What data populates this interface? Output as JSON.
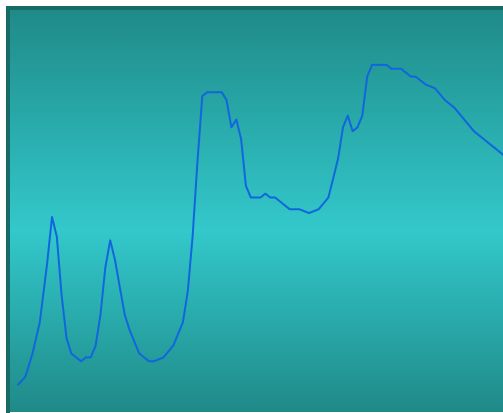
{
  "colors": {
    "background_edge": "#1f8a88",
    "background_center": "#33c8cb",
    "line": "#1166dd",
    "border": "#176a66"
  },
  "chart_data": {
    "type": "line",
    "title": "",
    "xlabel": "",
    "ylabel": "",
    "xlim": [
      0,
      100
    ],
    "ylim": [
      0,
      100
    ],
    "grid": false,
    "series": [
      {
        "x": [
          0,
          1.5,
          3,
          4.5,
          6,
          7,
          8,
          9,
          10,
          11,
          12,
          13,
          14,
          15,
          16,
          17,
          18,
          19,
          20,
          21,
          22,
          23,
          24,
          25,
          26,
          27,
          28,
          30,
          32,
          34,
          35,
          36,
          37,
          38,
          39,
          40,
          41,
          42,
          43,
          44,
          45,
          46,
          47,
          48,
          49,
          50,
          51,
          52,
          53,
          54,
          55,
          56,
          57,
          58,
          60,
          62,
          64,
          65,
          66,
          67,
          68,
          69,
          70,
          71,
          72,
          73,
          74,
          75,
          76,
          77,
          78,
          79,
          80,
          81,
          82,
          83,
          84,
          86,
          88,
          90,
          92,
          94,
          96,
          98,
          100
        ],
        "y": [
          7,
          9,
          15,
          23,
          38,
          50,
          45,
          30,
          19,
          15,
          14,
          13,
          14,
          14,
          17,
          25,
          37,
          44,
          39,
          32,
          25,
          21,
          18,
          15,
          14,
          13,
          13,
          14,
          17,
          23,
          31,
          45,
          64,
          81,
          82,
          82,
          82,
          82,
          80,
          73,
          75,
          70,
          58,
          55,
          55,
          55,
          56,
          55,
          55,
          54,
          53,
          52,
          52,
          52,
          51,
          52,
          55,
          60,
          65,
          73,
          76,
          72,
          73,
          76,
          86,
          89,
          89,
          89,
          89,
          88,
          88,
          88,
          87,
          86,
          86,
          85,
          84,
          83,
          80,
          78,
          75,
          72,
          70,
          68,
          66
        ]
      }
    ]
  }
}
